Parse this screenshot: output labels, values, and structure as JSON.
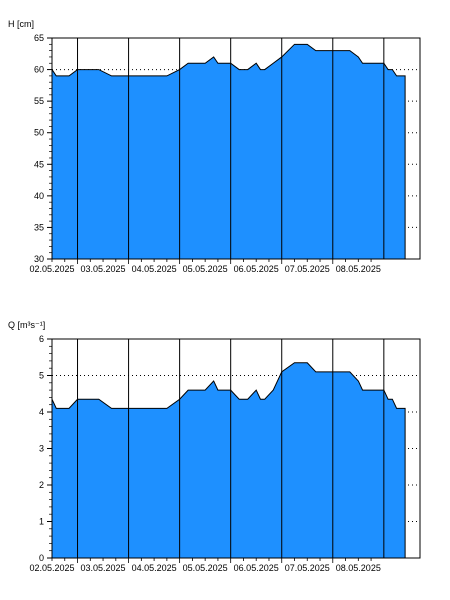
{
  "colors": {
    "fill": "#1e90ff",
    "outline": "#000000",
    "frame": "#000000",
    "grid": "#000000",
    "background": "#ffffff"
  },
  "chart_data": [
    {
      "type": "area",
      "ylabel": "H [cm]",
      "ylim": [
        30,
        65
      ],
      "yticks": [
        30,
        35,
        40,
        45,
        50,
        55,
        60,
        65
      ],
      "xlim": [
        "2025-05-01T12:00",
        "2025-05-08T17:00"
      ],
      "xtick_labels": [
        "02.05.2025",
        "03.05.2025",
        "04.05.2025",
        "05.05.2025",
        "06.05.2025",
        "07.05.2025",
        "08.05.2025"
      ],
      "grid": {
        "vertical": "solid",
        "horizontal": "dotted"
      },
      "series": [
        {
          "x": [
            "2025-05-01T12:00",
            "2025-05-01T14:00",
            "2025-05-01T16:00",
            "2025-05-01T20:00",
            "2025-05-02T00:00",
            "2025-05-02T06:00",
            "2025-05-02T10:00",
            "2025-05-02T16:00",
            "2025-05-02T20:00",
            "2025-05-03T00:00",
            "2025-05-03T06:00",
            "2025-05-03T12:00",
            "2025-05-03T18:00",
            "2025-05-04T00:00",
            "2025-05-04T04:00",
            "2025-05-04T06:00",
            "2025-05-04T12:00",
            "2025-05-04T16:00",
            "2025-05-04T18:00",
            "2025-05-04T20:00",
            "2025-05-05T00:00",
            "2025-05-05T04:00",
            "2025-05-05T08:00",
            "2025-05-05T12:00",
            "2025-05-05T14:00",
            "2025-05-05T16:00",
            "2025-05-05T20:00",
            "2025-05-06T00:00",
            "2025-05-06T06:00",
            "2025-05-06T12:00",
            "2025-05-06T16:00",
            "2025-05-06T20:00",
            "2025-05-07T00:00",
            "2025-05-07T08:00",
            "2025-05-07T12:00",
            "2025-05-07T14:00",
            "2025-05-07T16:00",
            "2025-05-07T18:00",
            "2025-05-07T20:00",
            "2025-05-08T00:00",
            "2025-05-08T02:00",
            "2025-05-08T04:00",
            "2025-05-08T06:00",
            "2025-05-08T10:00"
          ],
          "values": [
            60,
            59,
            59,
            59,
            60,
            60,
            60,
            59,
            59,
            59,
            59,
            59,
            59,
            60,
            61,
            61,
            61,
            62,
            61,
            61,
            61,
            60,
            60,
            61,
            60,
            60,
            61,
            62,
            64,
            64,
            63,
            63,
            63,
            63,
            62,
            61,
            61,
            61,
            61,
            61,
            60,
            60,
            59,
            59
          ]
        }
      ]
    },
    {
      "type": "area",
      "ylabel": "Q [m³s⁻¹]",
      "ylim": [
        0,
        6
      ],
      "yticks": [
        0,
        1,
        2,
        3,
        4,
        5,
        6
      ],
      "xlim": [
        "2025-05-01T12:00",
        "2025-05-08T17:00"
      ],
      "xtick_labels": [
        "02.05.2025",
        "03.05.2025",
        "04.05.2025",
        "05.05.2025",
        "06.05.2025",
        "07.05.2025",
        "08.05.2025"
      ],
      "grid": {
        "vertical": "solid",
        "horizontal": "dotted"
      },
      "series": [
        {
          "x": [
            "2025-05-01T12:00",
            "2025-05-01T14:00",
            "2025-05-01T16:00",
            "2025-05-01T20:00",
            "2025-05-02T00:00",
            "2025-05-02T06:00",
            "2025-05-02T10:00",
            "2025-05-02T16:00",
            "2025-05-02T20:00",
            "2025-05-03T00:00",
            "2025-05-03T06:00",
            "2025-05-03T12:00",
            "2025-05-03T18:00",
            "2025-05-04T00:00",
            "2025-05-04T04:00",
            "2025-05-04T06:00",
            "2025-05-04T12:00",
            "2025-05-04T16:00",
            "2025-05-04T18:00",
            "2025-05-04T20:00",
            "2025-05-05T00:00",
            "2025-05-05T04:00",
            "2025-05-05T08:00",
            "2025-05-05T12:00",
            "2025-05-05T14:00",
            "2025-05-05T16:00",
            "2025-05-05T20:00",
            "2025-05-06T00:00",
            "2025-05-06T06:00",
            "2025-05-06T12:00",
            "2025-05-06T16:00",
            "2025-05-06T20:00",
            "2025-05-07T00:00",
            "2025-05-07T08:00",
            "2025-05-07T12:00",
            "2025-05-07T14:00",
            "2025-05-07T16:00",
            "2025-05-07T18:00",
            "2025-05-07T20:00",
            "2025-05-08T00:00",
            "2025-05-08T02:00",
            "2025-05-08T04:00",
            "2025-05-08T06:00",
            "2025-05-08T10:00"
          ],
          "values": [
            4.35,
            4.1,
            4.1,
            4.1,
            4.35,
            4.35,
            4.35,
            4.1,
            4.1,
            4.1,
            4.1,
            4.1,
            4.1,
            4.35,
            4.6,
            4.6,
            4.6,
            4.85,
            4.6,
            4.6,
            4.6,
            4.35,
            4.35,
            4.6,
            4.35,
            4.35,
            4.6,
            5.1,
            5.35,
            5.35,
            5.1,
            5.1,
            5.1,
            5.1,
            4.85,
            4.6,
            4.6,
            4.6,
            4.6,
            4.6,
            4.35,
            4.35,
            4.1,
            4.1
          ]
        }
      ]
    }
  ]
}
